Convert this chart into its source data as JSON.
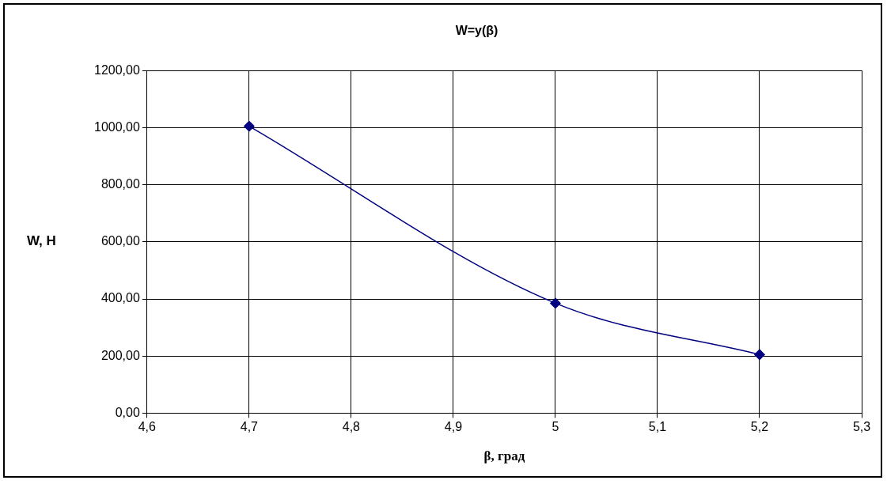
{
  "chart_data": {
    "type": "line",
    "title": "W=y(β)",
    "xlabel": "β, град",
    "ylabel": "W, H",
    "x": [
      4.7,
      5.0,
      5.2
    ],
    "series": [
      {
        "color": "#000080",
        "values": [
          1005,
          385,
          205
        ]
      }
    ],
    "xlim": [
      4.6,
      5.3
    ],
    "xticks": [
      {
        "value": 4.6,
        "label": "4,6"
      },
      {
        "value": 4.7,
        "label": "4,7"
      },
      {
        "value": 4.8,
        "label": "4,8"
      },
      {
        "value": 4.9,
        "label": "4,9"
      },
      5,
      {
        "value": 5.1,
        "label": "5,1"
      },
      {
        "value": 5.2,
        "label": "5,2"
      },
      {
        "value": 5.3,
        "label": "5,3"
      }
    ],
    "ylim": [
      0,
      1200
    ],
    "yticks": [
      {
        "value": 0,
        "label": "0,00"
      },
      {
        "value": 200,
        "label": "200,00"
      },
      {
        "value": 400,
        "label": "400,00"
      },
      {
        "value": 600,
        "label": "600,00"
      },
      {
        "value": 800,
        "label": "800,00"
      },
      {
        "value": 1000,
        "label": "1000,00"
      },
      {
        "value": 1200,
        "label": "1200,00"
      }
    ],
    "grid": true,
    "legend": false,
    "marker": "diamond",
    "line_style": "solid"
  }
}
